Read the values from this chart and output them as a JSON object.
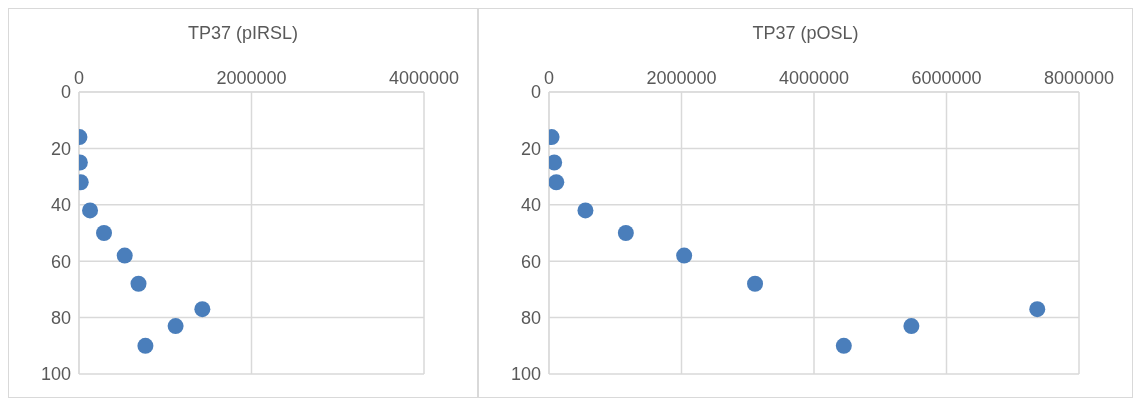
{
  "chart_data": [
    {
      "type": "scatter",
      "title": "TP37 (pIRSL)",
      "series": [
        {
          "color": "#4a7ebb",
          "x": [
            5000,
            10000,
            20000,
            128000,
            290000,
            530000,
            690000,
            1430000,
            1120000,
            770000
          ],
          "values": [
            16,
            25,
            32,
            42,
            50,
            58,
            68,
            77,
            83,
            90
          ]
        }
      ],
      "xlim": [
        0,
        4000000
      ],
      "xticks": [
        0,
        2000000,
        4000000
      ],
      "ylim": [
        100,
        0
      ],
      "yticks": [
        0,
        20,
        40,
        60,
        80,
        100
      ],
      "grid": true,
      "marker": "circle"
    },
    {
      "type": "scatter",
      "title": "TP37 (pOSL)",
      "series": [
        {
          "color": "#4a7ebb",
          "x": [
            39000,
            78000,
            110000,
            550000,
            1160000,
            2040000,
            3110000,
            7370000,
            5470000,
            4450000
          ],
          "values": [
            16,
            25,
            32,
            42,
            50,
            58,
            68,
            77,
            83,
            90
          ]
        }
      ],
      "xlim": [
        0,
        8000000
      ],
      "xticks": [
        0,
        2000000,
        4000000,
        6000000,
        8000000
      ],
      "ylim": [
        100,
        0
      ],
      "yticks": [
        0,
        20,
        40,
        60,
        80,
        100
      ],
      "grid": true,
      "marker": "circle"
    }
  ]
}
